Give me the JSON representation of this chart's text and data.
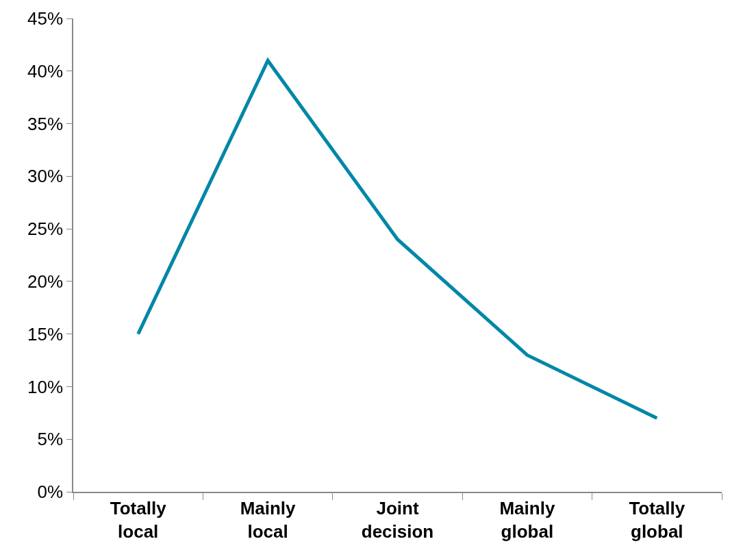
{
  "chart_data": {
    "type": "line",
    "categories": [
      "Totally local",
      "Mainly local",
      "Joint decision",
      "Mainly global",
      "Totally global"
    ],
    "series": [
      {
        "color": "#0087a8",
        "values": [
          15,
          41,
          24,
          13,
          7
        ]
      }
    ],
    "ylim": [
      0,
      45
    ],
    "yticks": [
      {
        "value": 0,
        "label": "0%"
      },
      {
        "value": 5,
        "label": "5%"
      },
      {
        "value": 10,
        "label": "10%"
      },
      {
        "value": 15,
        "label": "15%"
      },
      {
        "value": 20,
        "label": "20%"
      },
      {
        "value": 25,
        "label": "25%"
      },
      {
        "value": 30,
        "label": "30%"
      },
      {
        "value": 35,
        "label": "35%"
      },
      {
        "value": 40,
        "label": "40%"
      },
      {
        "value": 45,
        "label": "45%"
      }
    ],
    "grid": false,
    "marker": "none",
    "line_style": "solid"
  }
}
